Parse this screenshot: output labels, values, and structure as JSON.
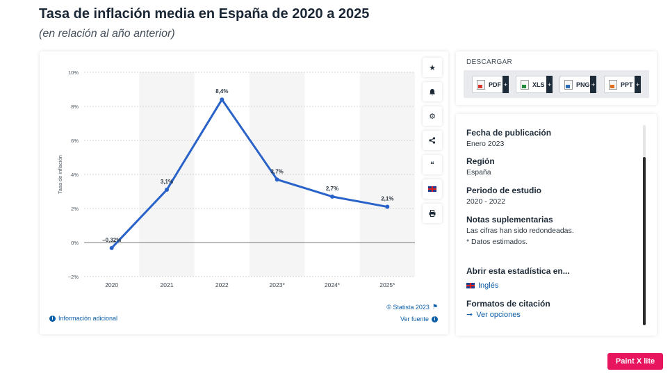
{
  "header": {
    "title": "Tasa de inflación media en España de 2020 a 2025",
    "subtitle": "(en relación al año anterior)"
  },
  "chart_data": {
    "type": "line",
    "title": "",
    "xlabel": "",
    "ylabel": "Tasa de inflación",
    "categories": [
      "2020",
      "2021",
      "2022",
      "2023*",
      "2024*",
      "2025*"
    ],
    "values": [
      -0.32,
      3.1,
      8.4,
      3.7,
      2.7,
      2.1
    ],
    "value_labels": [
      "−0,32%",
      "3,1%",
      "8,4%",
      "3,7%",
      "2,7%",
      "2,1%"
    ],
    "yticks": [
      "10%",
      "8%",
      "6%",
      "4%",
      "2%",
      "0%",
      "−2%"
    ],
    "ytick_values": [
      10,
      8,
      6,
      4,
      2,
      0,
      -2
    ],
    "ylim": [
      -2,
      10
    ],
    "grid": true,
    "line_color": "#2962c8"
  },
  "chart_footer": {
    "additional_info": "Información adicional",
    "copyright": "© Statista 2023",
    "source": "Ver fuente"
  },
  "toolbar": {
    "icons": [
      "star-icon",
      "bell-icon",
      "gear-icon",
      "share-icon",
      "quote-icon",
      "flag-icon",
      "print-icon"
    ]
  },
  "download": {
    "title": "DESCARGAR",
    "buttons": [
      {
        "label": "PDF",
        "color": "#d9342b"
      },
      {
        "label": "XLS",
        "color": "#1f8a3a"
      },
      {
        "label": "PNG",
        "color": "#2a6fb8"
      },
      {
        "label": "PPT",
        "color": "#e07020"
      }
    ],
    "plus": "+"
  },
  "meta": {
    "pub_label": "Fecha de publicación",
    "pub_value": "Enero 2023",
    "region_label": "Región",
    "region_value": "España",
    "period_label": "Periodo de estudio",
    "period_value": "2020 - 2022",
    "notes_label": "Notas suplementarias",
    "notes_value1": "Las cifras han sido redondeadas.",
    "notes_value2": "* Datos estimados.",
    "open_label": "Abrir esta estadística en...",
    "open_link": "Inglés",
    "cite_label": "Formatos de citación",
    "cite_link": "Ver opciones"
  },
  "badge": "Paint X lite"
}
